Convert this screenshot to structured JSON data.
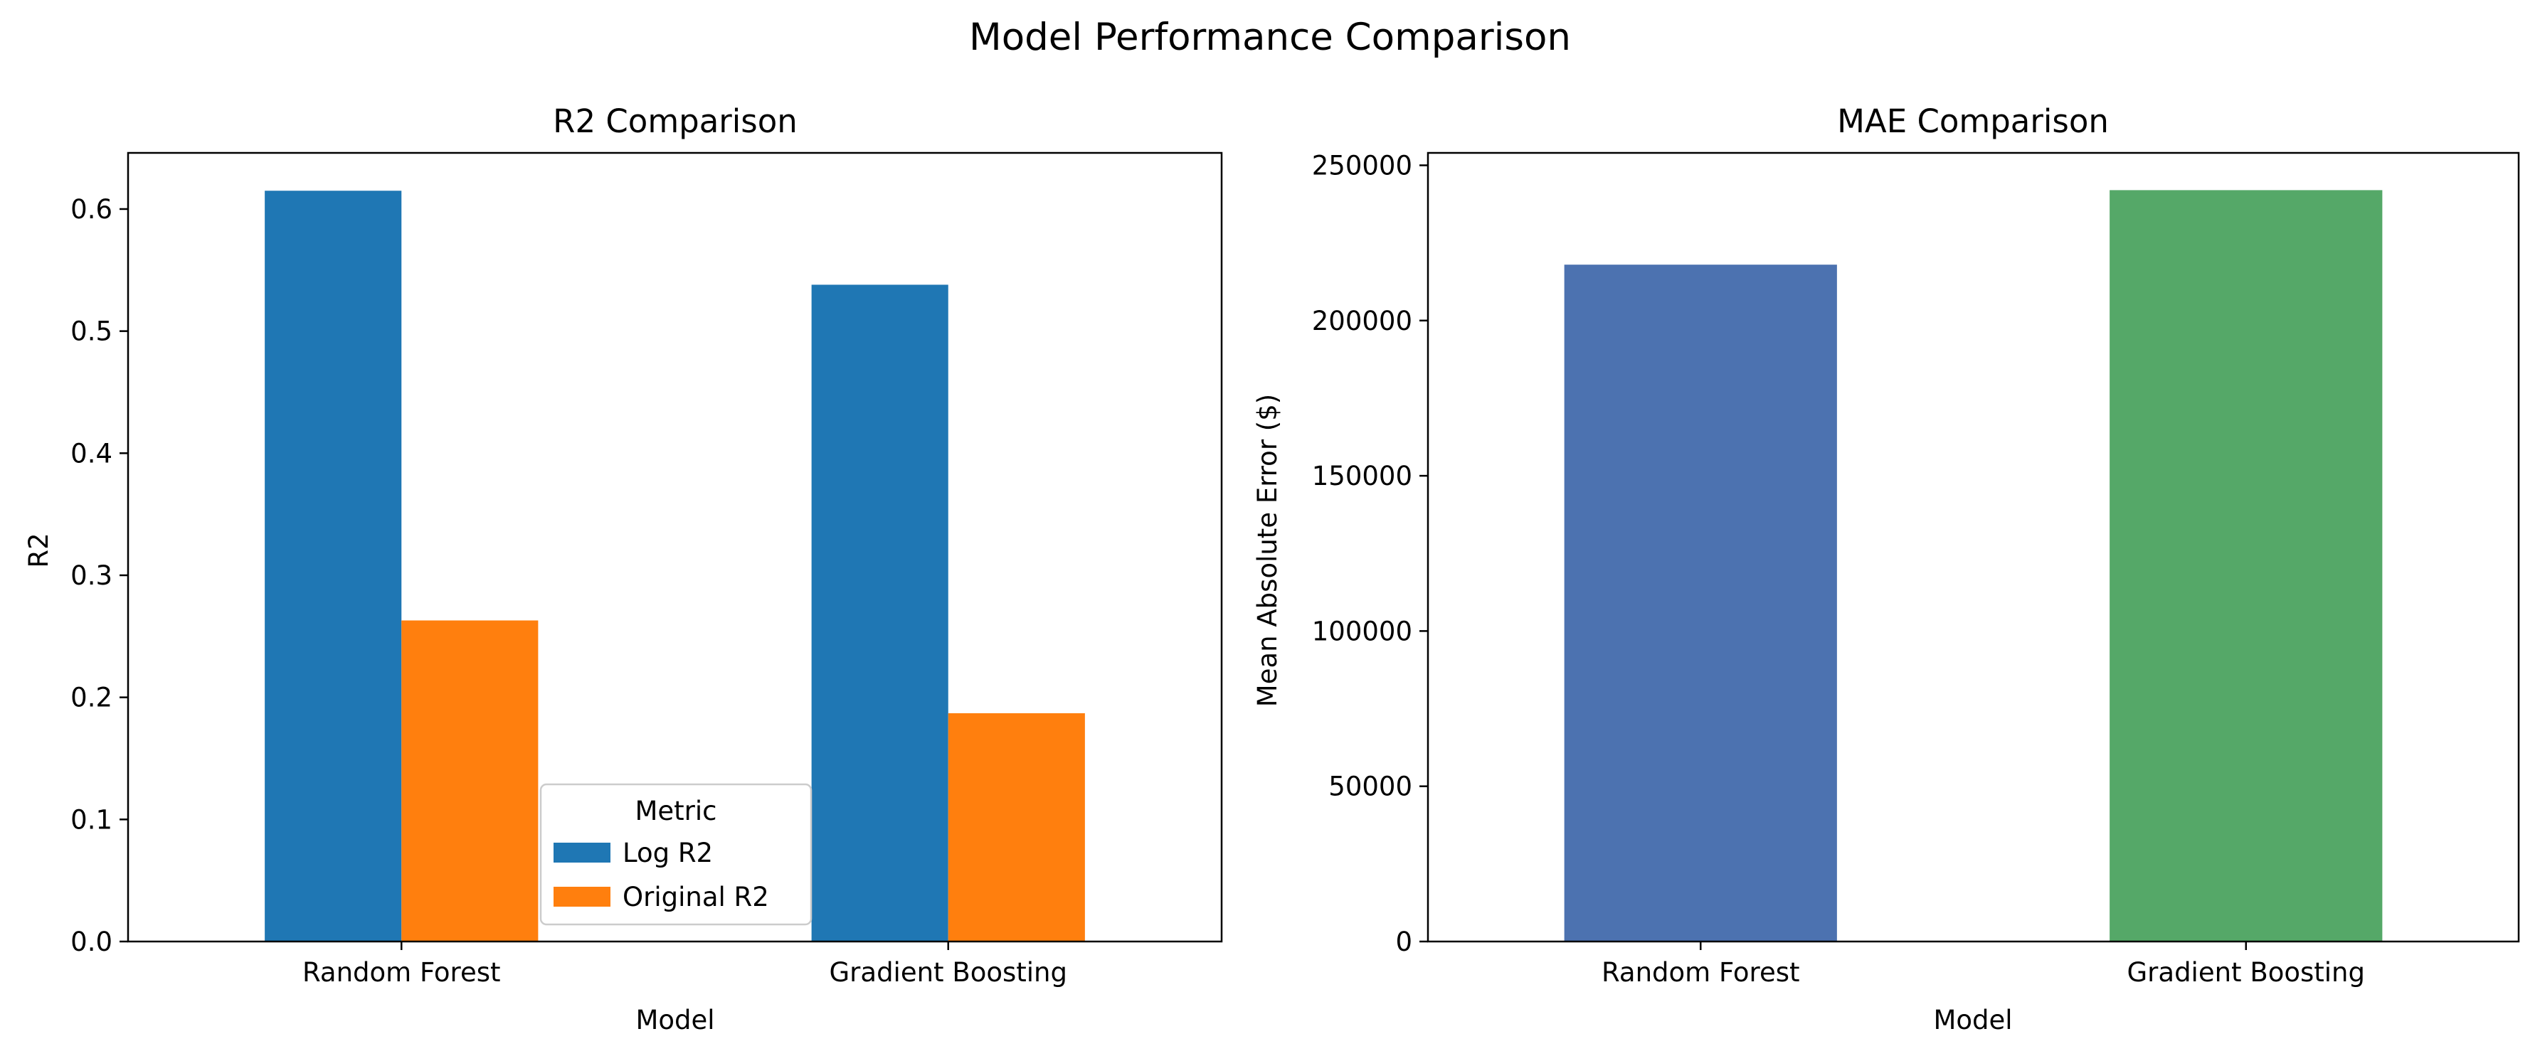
{
  "figure": {
    "title": "Model Performance Comparison"
  },
  "chart_data": [
    {
      "type": "bar",
      "title": "R2 Comparison",
      "xlabel": "Model",
      "ylabel": "R2",
      "categories": [
        "Random Forest",
        "Gradient Boosting"
      ],
      "series": [
        {
          "name": "Log R2",
          "color": "#1f77b4",
          "values": [
            0.615,
            0.538
          ]
        },
        {
          "name": "Original R2",
          "color": "#ff7f0e",
          "values": [
            0.263,
            0.187
          ]
        }
      ],
      "ylim": [
        0,
        0.646
      ],
      "yticks": [
        0.0,
        0.1,
        0.2,
        0.3,
        0.4,
        0.5,
        0.6
      ],
      "ytick_labels": [
        "0.0",
        "0.1",
        "0.2",
        "0.3",
        "0.4",
        "0.5",
        "0.6"
      ],
      "legend": {
        "title": "Metric",
        "placement": "lower-center"
      },
      "grid": false
    },
    {
      "type": "bar",
      "title": "MAE Comparison",
      "xlabel": "Model",
      "ylabel": "Mean Absolute Error ($)",
      "categories": [
        "Random Forest",
        "Gradient Boosting"
      ],
      "values": [
        218000,
        242000
      ],
      "colors": [
        "#4c72b0",
        "#55a868"
      ],
      "ylim": [
        0,
        254000
      ],
      "yticks": [
        0,
        50000,
        100000,
        150000,
        200000,
        250000
      ],
      "ytick_labels": [
        "0",
        "50000",
        "100000",
        "150000",
        "200000",
        "250000"
      ],
      "grid": false
    }
  ]
}
